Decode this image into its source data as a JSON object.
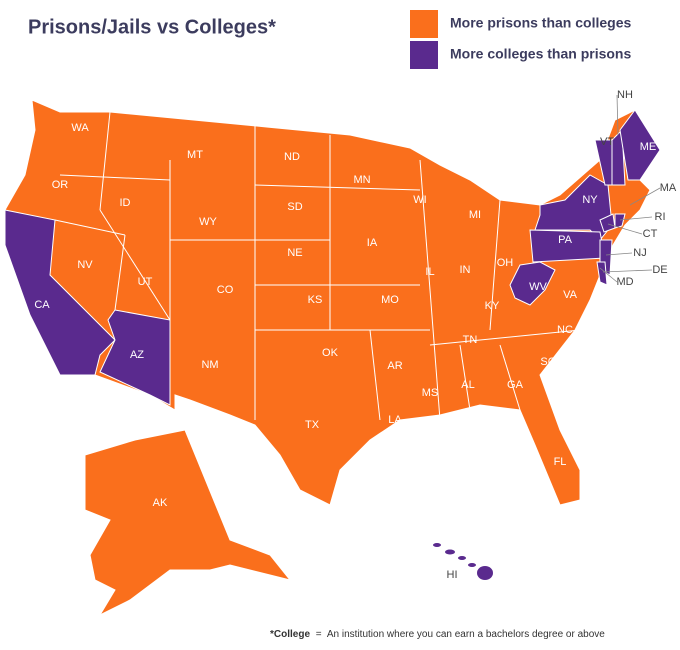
{
  "title": "Prisons/Jails vs Colleges*",
  "legend": [
    {
      "label": "More prisons than colleges",
      "color": "#fa6f1c",
      "states": [
        "WA",
        "OR",
        "ID",
        "MT",
        "WY",
        "NV",
        "UT",
        "CO",
        "NM",
        "ND",
        "SD",
        "NE",
        "KS",
        "OK",
        "TX",
        "MN",
        "IA",
        "MO",
        "AR",
        "LA",
        "WI",
        "IL",
        "MI",
        "IN",
        "OH",
        "KY",
        "TN",
        "MS",
        "AL",
        "GA",
        "FL",
        "SC",
        "NC",
        "VA",
        "MD",
        "MA",
        "AK"
      ]
    },
    {
      "label": "More colleges than prisons",
      "color": "#5a2a8e",
      "states": [
        "CA",
        "AZ",
        "NY",
        "PA",
        "WV",
        "VT",
        "NH",
        "ME",
        "CT",
        "RI",
        "NJ",
        "DE",
        "HI"
      ]
    }
  ],
  "footnote": {
    "term": "*College",
    "separator": "=",
    "text": "An institution where you can earn a bachelors degree or above"
  }
}
